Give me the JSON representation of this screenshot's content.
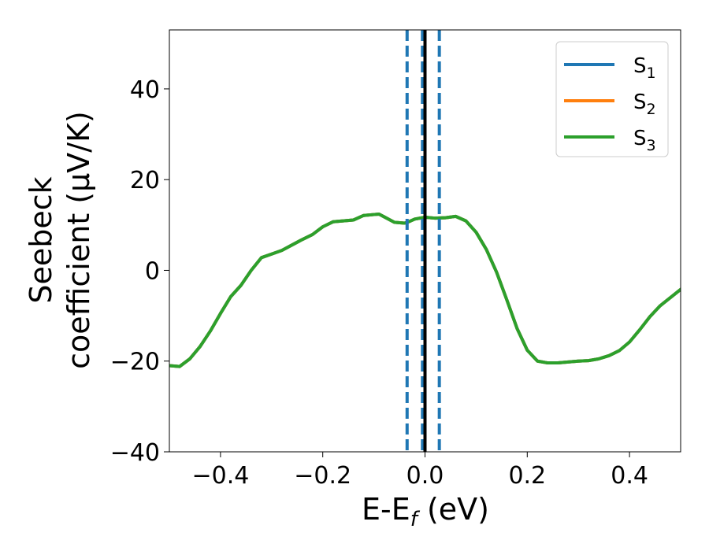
{
  "chart_data": {
    "type": "line",
    "xlabel": {
      "main": "E-E",
      "sub": "f",
      "unit": " (eV)"
    },
    "ylabel": {
      "line1": "Seebeck",
      "line2": "coefficient  (μV/K)"
    },
    "xlim": [
      -0.5,
      0.5
    ],
    "ylim": [
      -40,
      53
    ],
    "xticks": [
      -0.4,
      -0.2,
      0.0,
      0.2,
      0.4
    ],
    "xtick_labels": [
      "−0.4",
      "−0.2",
      "0.0",
      "0.2",
      "0.4"
    ],
    "yticks": [
      -40,
      -20,
      0,
      20,
      40
    ],
    "ytick_labels": [
      "−40",
      "−20",
      "0",
      "20",
      "40"
    ],
    "grid": false,
    "legend_position": "top-right",
    "series": [
      {
        "name": "S",
        "sub": "1",
        "color": "#1f77b4",
        "x": [
          -0.5,
          -0.48,
          -0.46,
          -0.44,
          -0.42,
          -0.4,
          -0.38,
          -0.36,
          -0.34,
          -0.32,
          -0.3,
          -0.28,
          -0.26,
          -0.24,
          -0.22,
          -0.2,
          -0.18,
          -0.16,
          -0.14,
          -0.12,
          -0.1,
          -0.09,
          -0.08,
          -0.06,
          -0.04,
          -0.03,
          -0.02,
          0.0,
          0.02,
          0.04,
          0.06,
          0.08,
          0.1,
          0.12,
          0.14,
          0.16,
          0.18,
          0.2,
          0.22,
          0.24,
          0.26,
          0.28,
          0.3,
          0.32,
          0.34,
          0.36,
          0.38,
          0.4,
          0.42,
          0.44,
          0.46,
          0.48,
          0.5
        ],
        "y": [
          -21,
          -21.2,
          -19.5,
          -16.8,
          -13.4,
          -9.5,
          -5.8,
          -3.3,
          0,
          2.8,
          3.6,
          4.4,
          5.6,
          6.8,
          7.9,
          9.6,
          10.7,
          10.9,
          11.1,
          12.1,
          12.3,
          12.4,
          11.8,
          10.6,
          10.4,
          10.8,
          11.3,
          11.7,
          11.5,
          11.6,
          11.9,
          10.9,
          8.4,
          4.6,
          -0.4,
          -6.5,
          -12.8,
          -17.6,
          -20,
          -20.4,
          -20.4,
          -20.2,
          -20,
          -19.9,
          -19.5,
          -18.8,
          -17.7,
          -15.8,
          -13.1,
          -10.2,
          -7.8,
          -6,
          -4.2
        ]
      },
      {
        "name": "S",
        "sub": "2",
        "color": "#ff7f0e",
        "x": [
          -0.5,
          -0.48,
          -0.46,
          -0.44,
          -0.42,
          -0.4,
          -0.38,
          -0.36,
          -0.34,
          -0.32,
          -0.3,
          -0.28,
          -0.26,
          -0.24,
          -0.22,
          -0.2,
          -0.18,
          -0.16,
          -0.14,
          -0.12,
          -0.1,
          -0.09,
          -0.08,
          -0.06,
          -0.04,
          -0.03,
          -0.02,
          0.0,
          0.02,
          0.04,
          0.06,
          0.08,
          0.1,
          0.12,
          0.14,
          0.16,
          0.18,
          0.2,
          0.22,
          0.24,
          0.26,
          0.28,
          0.3,
          0.32,
          0.34,
          0.36,
          0.38,
          0.4,
          0.42,
          0.44,
          0.46,
          0.48,
          0.5
        ],
        "y": [
          -21,
          -21.2,
          -19.5,
          -16.8,
          -13.4,
          -9.5,
          -5.8,
          -3.3,
          0,
          2.8,
          3.6,
          4.4,
          5.6,
          6.8,
          7.9,
          9.6,
          10.7,
          10.9,
          11.1,
          12.1,
          12.3,
          12.4,
          11.8,
          10.6,
          10.4,
          10.8,
          11.3,
          11.7,
          11.5,
          11.6,
          11.9,
          10.9,
          8.4,
          4.6,
          -0.4,
          -6.5,
          -12.8,
          -17.6,
          -20,
          -20.4,
          -20.4,
          -20.2,
          -20,
          -19.9,
          -19.5,
          -18.8,
          -17.7,
          -15.8,
          -13.1,
          -10.2,
          -7.8,
          -6,
          -4.2
        ]
      },
      {
        "name": "S",
        "sub": "3",
        "color": "#2ca02c",
        "x": [
          -0.5,
          -0.48,
          -0.46,
          -0.44,
          -0.42,
          -0.4,
          -0.38,
          -0.36,
          -0.34,
          -0.32,
          -0.3,
          -0.28,
          -0.26,
          -0.24,
          -0.22,
          -0.2,
          -0.18,
          -0.16,
          -0.14,
          -0.12,
          -0.1,
          -0.09,
          -0.08,
          -0.06,
          -0.04,
          -0.03,
          -0.02,
          0.0,
          0.02,
          0.04,
          0.06,
          0.08,
          0.1,
          0.12,
          0.14,
          0.16,
          0.18,
          0.2,
          0.22,
          0.24,
          0.26,
          0.28,
          0.3,
          0.32,
          0.34,
          0.36,
          0.38,
          0.4,
          0.42,
          0.44,
          0.46,
          0.48,
          0.5
        ],
        "y": [
          -21,
          -21.2,
          -19.5,
          -16.8,
          -13.4,
          -9.5,
          -5.8,
          -3.3,
          0,
          2.8,
          3.6,
          4.4,
          5.6,
          6.8,
          7.9,
          9.6,
          10.7,
          10.9,
          11.1,
          12.1,
          12.3,
          12.4,
          11.8,
          10.6,
          10.4,
          10.8,
          11.3,
          11.7,
          11.5,
          11.6,
          11.9,
          10.9,
          8.4,
          4.6,
          -0.4,
          -6.5,
          -12.8,
          -17.6,
          -20,
          -20.4,
          -20.4,
          -20.2,
          -20,
          -19.9,
          -19.5,
          -18.8,
          -17.7,
          -15.8,
          -13.1,
          -10.2,
          -7.8,
          -6,
          -4.2
        ]
      }
    ],
    "vlines": [
      {
        "x": -0.035,
        "style": "dashed",
        "color": "#1f77b4"
      },
      {
        "x": -0.005,
        "style": "dashed",
        "color": "#1f77b4"
      },
      {
        "x": 0.028,
        "style": "dashed",
        "color": "#1f77b4"
      },
      {
        "x": 0.0,
        "style": "solid",
        "color": "#000000"
      }
    ]
  }
}
